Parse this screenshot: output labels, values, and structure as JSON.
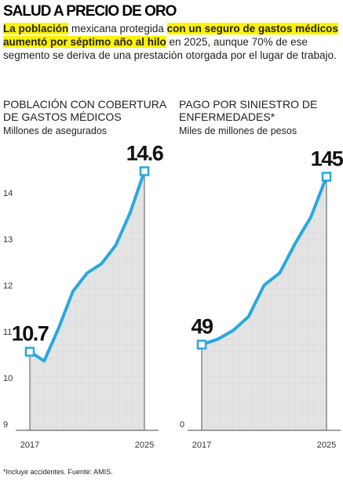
{
  "header": {
    "title": "SALUD A PRECIO DE ORO",
    "intro": [
      "La población",
      " mexicana protegida ",
      "con un seguro de gastos médicos aumentó por séptimo año al hilo",
      " en 2025, aunque 70% de ese segmento se deriva de una prestación otorgada por el lugar de trabajo."
    ]
  },
  "chart_data": [
    {
      "type": "line",
      "title": "POBLACIÓN CON COBERTURA DE GASTOS MÉDICOS",
      "subtitle": "Millones de asegurados",
      "categories": [
        "2017",
        null,
        null,
        null,
        null,
        null,
        null,
        null,
        "2025"
      ],
      "values": [
        10.7,
        10.5,
        11.2,
        12.0,
        12.4,
        12.6,
        13.0,
        13.7,
        14.6
      ],
      "color": "#29a8e0",
      "ylim": [
        9,
        15.2
      ],
      "yticks": [
        9,
        10,
        11,
        12,
        13,
        14
      ]
    },
    {
      "type": "line",
      "title": "PAGO POR SINIESTRO DE ENFERMEDADES*",
      "subtitle": "Miles de millones de pesos",
      "categories": [
        "2017",
        null,
        null,
        null,
        null,
        null,
        null,
        null,
        "2025"
      ],
      "values": [
        49,
        52,
        57,
        65,
        83,
        90,
        107,
        122,
        145
      ],
      "color": "#29a8e0",
      "ylim": [
        0,
        164
      ],
      "yticks": [
        0
      ]
    }
  ],
  "footnote": "*Incluye accidentes. Fuente: AMIS."
}
